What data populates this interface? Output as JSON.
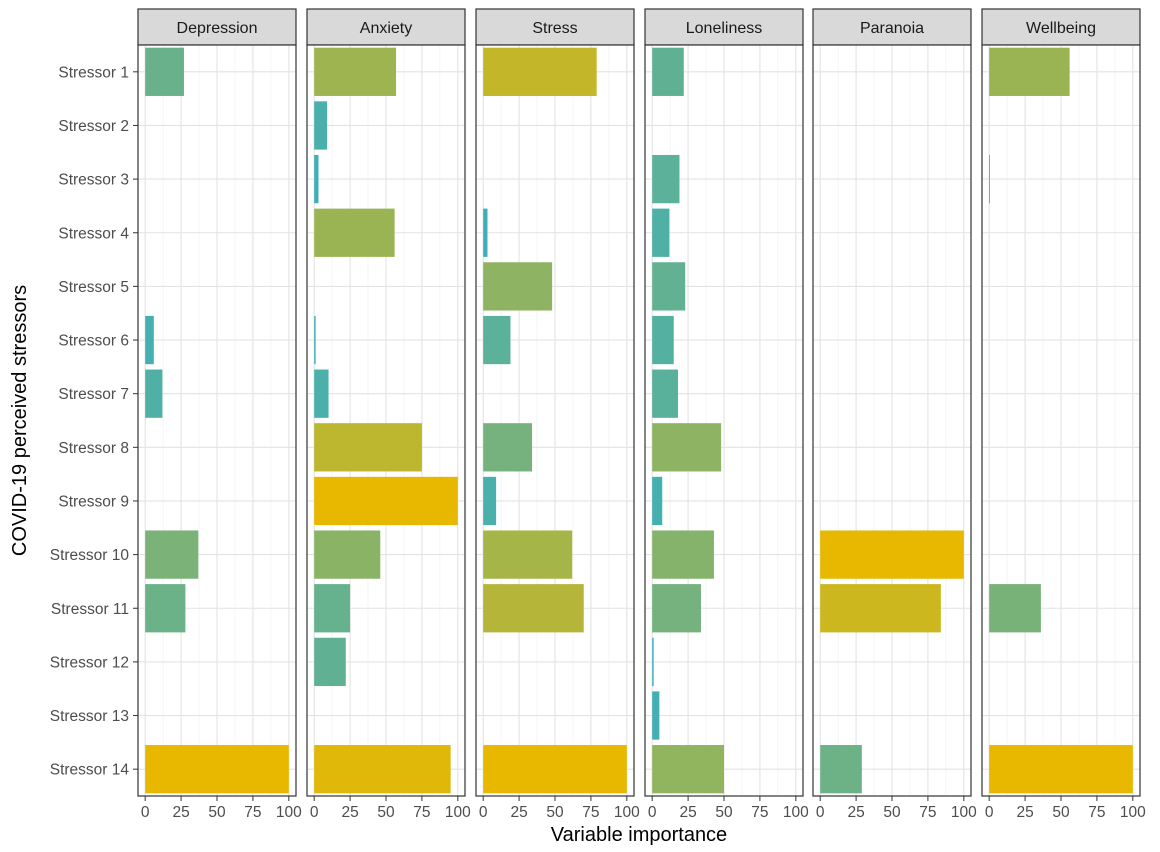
{
  "chart_data": {
    "type": "bar",
    "orientation": "horizontal",
    "facets": [
      "Depression",
      "Anxiety",
      "Stress",
      "Loneliness",
      "Paranoia",
      "Wellbeing"
    ],
    "categories": [
      "Stressor 1",
      "Stressor 2",
      "Stressor 3",
      "Stressor 4",
      "Stressor 5",
      "Stressor 6",
      "Stressor 7",
      "Stressor 8",
      "Stressor 9",
      "Stressor 10",
      "Stressor 11",
      "Stressor 12",
      "Stressor 13",
      "Stressor 14"
    ],
    "series": [
      {
        "name": "Depression",
        "values": [
          27,
          null,
          null,
          null,
          null,
          6,
          12,
          null,
          null,
          37,
          28,
          null,
          null,
          100
        ]
      },
      {
        "name": "Anxiety",
        "values": [
          57,
          9,
          3,
          56,
          null,
          1,
          10,
          75,
          100,
          46,
          25,
          22,
          null,
          95
        ]
      },
      {
        "name": "Stress",
        "values": [
          79,
          null,
          null,
          3,
          48,
          19,
          null,
          34,
          9,
          62,
          70,
          null,
          null,
          100
        ]
      },
      {
        "name": "Loneliness",
        "values": [
          22,
          null,
          19,
          12,
          23,
          15,
          18,
          48,
          7,
          43,
          34,
          1,
          5,
          50
        ]
      },
      {
        "name": "Paranoia",
        "values": [
          null,
          null,
          null,
          null,
          null,
          null,
          null,
          null,
          null,
          100,
          84,
          null,
          null,
          29
        ]
      },
      {
        "name": "Wellbeing",
        "values": [
          56,
          null,
          0.5,
          null,
          null,
          null,
          null,
          null,
          null,
          null,
          36,
          null,
          null,
          100
        ]
      }
    ],
    "xticks": [
      0,
      25,
      50,
      75,
      100
    ],
    "xlim": [
      -5,
      105
    ],
    "xlabel": "Variable importance",
    "ylabel": "COVID-19 perceived stressors",
    "color_scale": {
      "low": "#3AAFBD",
      "high": "#E8B800"
    },
    "grid": true,
    "legend": "none"
  }
}
